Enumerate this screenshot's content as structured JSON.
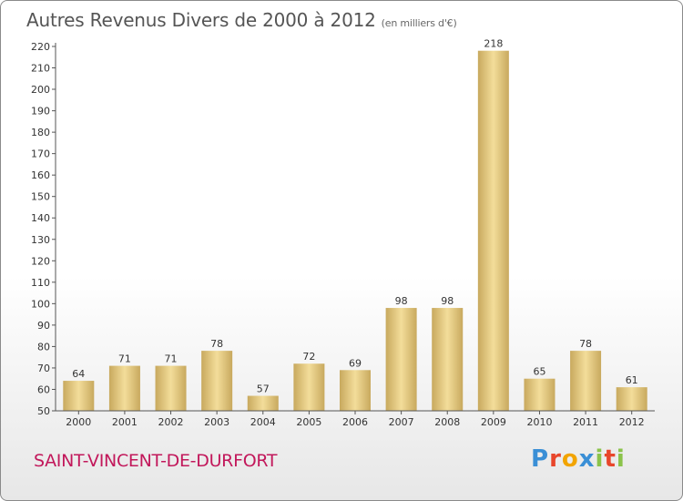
{
  "header": {
    "title": "Autres Revenus Divers de 2000 à 2012",
    "subtitle": "(en milliers d'€)"
  },
  "footer": {
    "commune": "SAINT-VINCENT-DE-DURFORT",
    "logo_letters": [
      "P",
      "r",
      "o",
      "x",
      "i",
      "t",
      "i"
    ],
    "logo_colors": [
      "#3a8fd6",
      "#e8462b",
      "#f2a400",
      "#3a8fd6",
      "#8bc34a",
      "#e8462b",
      "#8bc34a"
    ]
  },
  "colors": {
    "bar_light": "#f3dd9a",
    "bar_dark": "#c8a95e",
    "axis": "#555555"
  },
  "chart_data": {
    "type": "bar",
    "title": "Autres Revenus Divers de 2000 à 2012",
    "subtitle": "(en milliers d'€)",
    "categories": [
      "2000",
      "2001",
      "2002",
      "2003",
      "2004",
      "2005",
      "2006",
      "2007",
      "2008",
      "2009",
      "2010",
      "2011",
      "2012"
    ],
    "values": [
      64,
      71,
      71,
      78,
      57,
      72,
      69,
      98,
      98,
      218,
      65,
      78,
      61
    ],
    "ylim": [
      50,
      220
    ],
    "yticks": [
      50,
      60,
      70,
      80,
      90,
      100,
      110,
      120,
      130,
      140,
      150,
      160,
      170,
      180,
      190,
      200,
      210,
      220
    ],
    "grid": false,
    "legend": "none"
  }
}
